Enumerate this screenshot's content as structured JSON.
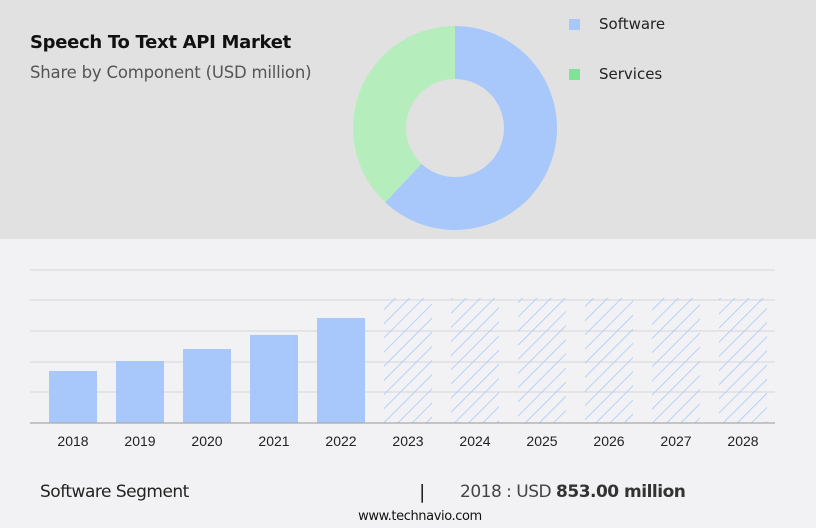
{
  "header": {
    "title": "Speech To Text API Market",
    "subtitle": "Share by Component (USD million)"
  },
  "legend": [
    {
      "label": "Software",
      "color": "#a8c8fc"
    },
    {
      "label": "Services",
      "color": "#7ee396"
    }
  ],
  "colors": {
    "top_panel_bg": "#e1e1e1",
    "page_bg": "#f2f2f4",
    "software": "#a8c8fc",
    "services_donut": "#b6edbc",
    "services_legend": "#7ee396",
    "gridline": "#d6d6d8",
    "axis": "#a8a8aa"
  },
  "footer": {
    "segment_label": "Software Segment",
    "separator": "|",
    "value_prefix": "2018 : USD ",
    "value_bold": "853.00 million",
    "url": "www.technavio.com"
  },
  "chart_data": [
    {
      "type": "pie",
      "subtype": "donut",
      "title": "Speech To Text API Market",
      "subtitle": "Share by Component (USD million)",
      "categories": [
        "Software",
        "Services"
      ],
      "values": [
        62,
        38
      ],
      "unit": "percent (approx. share)",
      "legend_position": "right"
    },
    {
      "type": "bar",
      "title": "Software Segment",
      "categories": [
        "2018",
        "2019",
        "2020",
        "2021",
        "2022",
        "2023",
        "2024",
        "2025",
        "2026",
        "2027",
        "2028"
      ],
      "values": [
        853,
        1017,
        1214,
        1444,
        1723,
        null,
        null,
        null,
        null,
        null,
        null
      ],
      "forecast_categories": [
        "2023",
        "2024",
        "2025",
        "2026",
        "2027",
        "2028"
      ],
      "forecast_style": "hatched placeholder (values not shown)",
      "annotation": "2018 : USD 853.00 million",
      "xlabel": "",
      "ylabel": "USD million",
      "grid": true,
      "y_ticks_shown": false
    }
  ]
}
